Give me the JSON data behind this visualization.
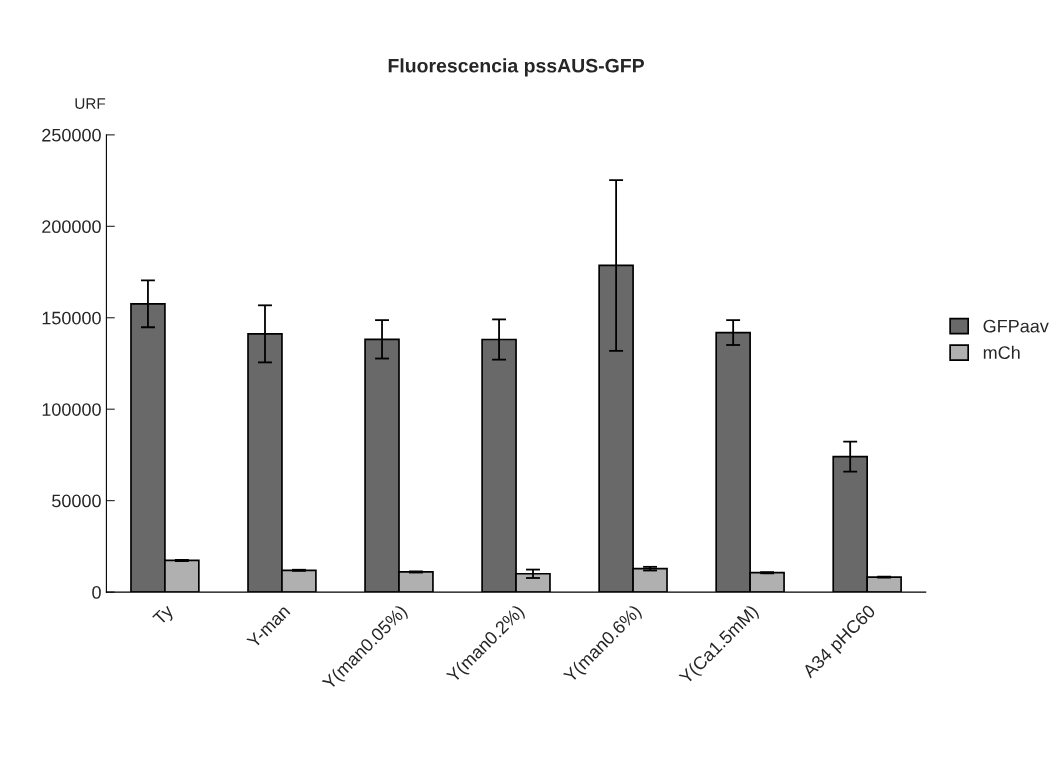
{
  "chart_data": {
    "type": "bar",
    "title": "Fluorescencia pssAUS-GFP",
    "ylabel": "URF",
    "categories": [
      "Ty",
      "Y-man",
      "Y(man0.05%)",
      "Y(man0.2%)",
      "Y(man0.6%)",
      "Y(Ca1.5mM)",
      "A34 pHC60"
    ],
    "series": [
      {
        "name": "GFPaav",
        "color": "#696969",
        "values": [
          157600,
          141200,
          138200,
          138100,
          178600,
          141900,
          74100
        ],
        "errors": [
          12800,
          15600,
          10500,
          11000,
          46700,
          6800,
          8200
        ]
      },
      {
        "name": "mCh",
        "color": "#b0b0b0",
        "values": [
          17300,
          11900,
          11000,
          10000,
          12800,
          10600,
          8200
        ],
        "errors": [
          300,
          300,
          300,
          2300,
          1000,
          300,
          300
        ]
      }
    ],
    "ylim": [
      0,
      250000
    ],
    "yticks": [
      0,
      50000,
      100000,
      150000,
      200000,
      250000
    ],
    "grid": false,
    "legend": "right"
  }
}
